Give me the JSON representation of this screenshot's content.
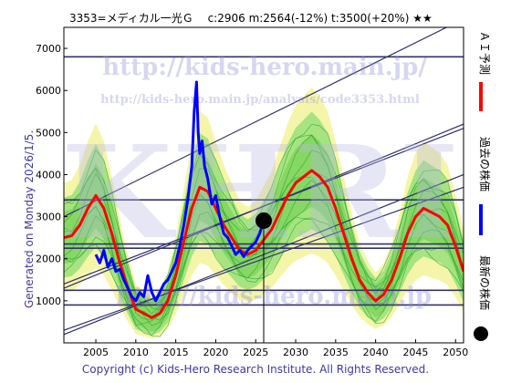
{
  "header": {
    "text": "3353=メディカル一光Ｇ　 c:2906  m:2564(-12%)  t:3500(+20%)  ★★"
  },
  "generated_text": "Generated on Monday 2026/1/5.",
  "watermarks": {
    "url1": "http://kids-hero.main.jp/",
    "url2": "http://kids-hero.main.jp/analysis/code3353.html",
    "big": "KHRI",
    "url3": "http://kids-hero.main.jp"
  },
  "legend": {
    "ai": "ＡＩ予測",
    "past": "過去の株価",
    "latest": "最新の株価"
  },
  "footer": "Copyright (c) Kids-Hero Research Institute. All Rights Reserved.",
  "colors": {
    "ai": "#ff0000",
    "past": "#0000ff",
    "band_yellow": "#f4f4a0",
    "band_green": "#99e07a",
    "trend": "#33336e",
    "footer": "#3a3aa8"
  },
  "chart_data": {
    "type": "line",
    "xlim": [
      2001,
      2051
    ],
    "ylim": [
      0,
      7500
    ],
    "xticks": [
      2005,
      2010,
      2015,
      2020,
      2025,
      2030,
      2035,
      2040,
      2045,
      2050
    ],
    "yticks": [
      1000,
      2000,
      3000,
      4000,
      5000,
      6000,
      7000
    ],
    "current": {
      "x": 2026.0,
      "y": 2906
    },
    "horizontal_levels": [
      6800,
      3400,
      2350,
      2250,
      1250,
      900
    ],
    "trend_lines": [
      {
        "from": [
          2001,
          3000
        ],
        "to": [
          2051,
          7700
        ]
      },
      {
        "from": [
          2001,
          1400
        ],
        "to": [
          2051,
          5100
        ]
      },
      {
        "from": [
          2001,
          1300
        ],
        "to": [
          2051,
          5200
        ]
      },
      {
        "from": [
          2001,
          200
        ],
        "to": [
          2051,
          4000
        ]
      },
      {
        "from": [
          2001,
          300
        ],
        "to": [
          2051,
          3700
        ]
      }
    ],
    "series": [
      {
        "name": "ＡＩ予測",
        "x": [
          2001,
          2002,
          2003,
          2004,
          2005,
          2006,
          2007,
          2008,
          2009,
          2010,
          2011,
          2012,
          2013,
          2014,
          2015,
          2016,
          2017,
          2018,
          2019,
          2020,
          2021,
          2022,
          2023,
          2024,
          2025,
          2026,
          2027,
          2028,
          2029,
          2030,
          2031,
          2032,
          2033,
          2034,
          2035,
          2036,
          2037,
          2038,
          2039,
          2040,
          2041,
          2042,
          2043,
          2044,
          2045,
          2046,
          2047,
          2048,
          2049,
          2050,
          2051
        ],
        "values": [
          2500,
          2550,
          2800,
          3200,
          3500,
          3200,
          2600,
          1900,
          1300,
          800,
          700,
          600,
          700,
          1000,
          1600,
          2400,
          3200,
          3700,
          3600,
          3200,
          2800,
          2500,
          2200,
          2100,
          2200,
          2450,
          2700,
          3100,
          3500,
          3800,
          3950,
          4100,
          3950,
          3700,
          3200,
          2600,
          2000,
          1500,
          1200,
          1000,
          1150,
          1500,
          2000,
          2600,
          3000,
          3200,
          3100,
          3000,
          2800,
          2300,
          1700
        ]
      },
      {
        "name": "過去の株価",
        "x": [
          2005,
          2005.5,
          2006,
          2006.5,
          2007,
          2007.5,
          2008,
          2008.5,
          2009,
          2009.5,
          2010,
          2010.5,
          2011,
          2011.5,
          2012,
          2012.5,
          2013,
          2013.5,
          2014,
          2014.5,
          2015,
          2015.5,
          2016,
          2016.5,
          2017,
          2017.3,
          2017.6,
          2017.8,
          2018,
          2018.3,
          2018.6,
          2019,
          2019.5,
          2020,
          2020.5,
          2021,
          2021.5,
          2022,
          2022.5,
          2023,
          2023.5,
          2024,
          2024.5,
          2025,
          2025.5,
          2026
        ],
        "values": [
          2100,
          1900,
          2200,
          1800,
          2000,
          1700,
          1750,
          1500,
          1300,
          1100,
          1000,
          1200,
          1100,
          1600,
          1200,
          1000,
          1200,
          1400,
          1500,
          1700,
          1900,
          2300,
          2800,
          3400,
          4200,
          5500,
          6200,
          5000,
          4500,
          4800,
          4200,
          3900,
          3300,
          3500,
          3000,
          2600,
          2500,
          2300,
          2100,
          2200,
          2050,
          2200,
          2300,
          2400,
          2600,
          2900
        ]
      }
    ]
  }
}
